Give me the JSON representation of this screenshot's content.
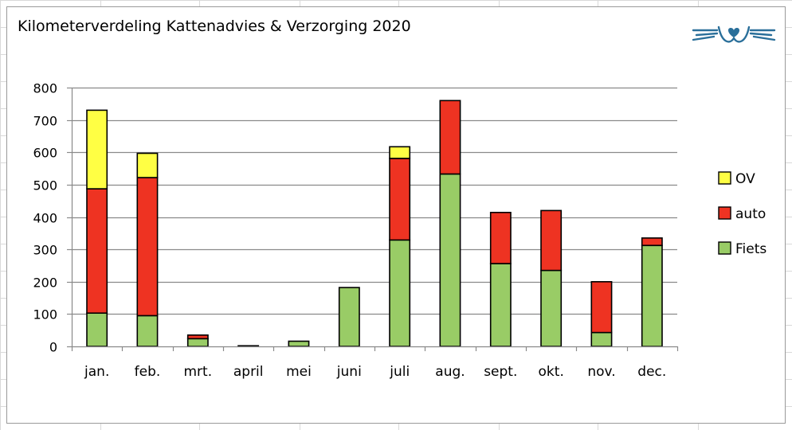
{
  "chart_data": {
    "type": "bar",
    "stacked": true,
    "title": "Kilometerverdeling Kattenadvies & Verzorging 2020",
    "categories": [
      "jan.",
      "feb.",
      "mrt.",
      "april",
      "mei",
      "juni",
      "juli",
      "aug.",
      "sept.",
      "okt.",
      "nov.",
      "dec."
    ],
    "series": [
      {
        "name": "Fiets",
        "color": "#99cc66",
        "values": [
          103,
          95,
          24,
          0,
          16,
          182,
          329,
          533,
          256,
          235,
          43,
          312
        ]
      },
      {
        "name": "auto",
        "color": "#ee3322",
        "values": [
          384,
          427,
          11,
          0,
          0,
          0,
          252,
          227,
          158,
          185,
          157,
          23
        ]
      },
      {
        "name": "OV",
        "color": "#ffff44",
        "values": [
          243,
          75,
          0,
          2,
          0,
          0,
          36,
          0,
          0,
          0,
          0,
          0
        ]
      }
    ],
    "ylim": [
      0,
      800
    ],
    "yticks": [
      0,
      100,
      200,
      300,
      400,
      500,
      600,
      700,
      800
    ],
    "grid": true,
    "legend": "right",
    "legend_order": [
      "OV",
      "auto",
      "Fiets"
    ]
  },
  "logo": {
    "icon": "cat-face-icon",
    "color": "#2a6f9a"
  }
}
